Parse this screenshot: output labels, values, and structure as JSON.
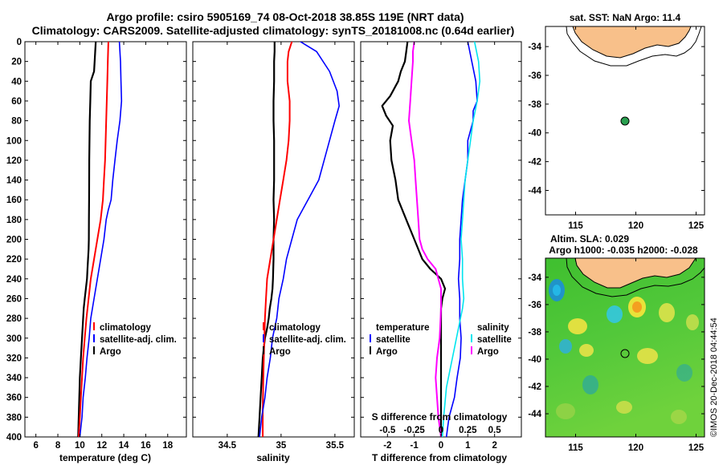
{
  "title": {
    "line1": "Argo profile: csiro 5905169_74 08-Oct-2018 38.85S 119E (NRT data)",
    "line2": "Climatology: CARS2009. Satellite-adjusted climatology: synTS_20181008.nc (0.64d earlier)"
  },
  "watermark": "©IMOS 20-Dec-2018 04:44:54",
  "colors": {
    "argo": "#000000",
    "climatology": "#ff0000",
    "satellite": "#0000ff",
    "s_satellite": "#00e5ee",
    "s_climatology": "#ff00ff",
    "land": "#f8c08a",
    "argo_marker": "#2aa050"
  },
  "chart_data": [
    {
      "id": "temperature",
      "type": "line",
      "xlabel": "temperature (deg C)",
      "xlim": [
        5,
        19.7
      ],
      "xticks": [
        6,
        8,
        10,
        12,
        14,
        16,
        18
      ],
      "ylim": [
        400,
        0
      ],
      "yticks": [
        0,
        20,
        40,
        60,
        80,
        100,
        120,
        140,
        160,
        180,
        200,
        220,
        240,
        260,
        280,
        300,
        320,
        340,
        360,
        380,
        400
      ],
      "legend": [
        "climatology",
        "satellite-adj. clim.",
        "Argo"
      ],
      "series": [
        {
          "name": "Argo",
          "color": "#000000",
          "width": 2.2,
          "x": [
            11.45,
            11.4,
            11.35,
            11.3,
            11.0,
            10.95,
            10.9,
            10.88,
            10.86,
            10.85,
            10.84,
            10.83,
            10.82,
            10.8,
            10.75,
            10.7,
            10.65,
            10.55,
            10.45,
            10.35,
            10.3,
            10.2,
            10.1,
            10.0,
            9.95,
            9.9,
            9.85
          ],
          "y": [
            0,
            10,
            20,
            30,
            40,
            60,
            80,
            100,
            120,
            140,
            160,
            180,
            200,
            210,
            220,
            230,
            240,
            250,
            260,
            270,
            280,
            300,
            320,
            340,
            360,
            380,
            400
          ]
        },
        {
          "name": "climatology",
          "color": "#ff0000",
          "width": 2,
          "x": [
            12.6,
            12.55,
            12.5,
            12.45,
            12.4,
            12.35,
            12.3,
            12.2,
            12.1,
            12.0,
            11.9,
            11.6,
            11.3,
            11.0,
            10.8,
            10.6,
            10.45,
            10.3,
            10.2,
            10.1,
            10.0,
            9.9
          ],
          "y": [
            0,
            20,
            40,
            60,
            80,
            100,
            120,
            140,
            160,
            170,
            180,
            200,
            220,
            240,
            260,
            280,
            300,
            320,
            340,
            360,
            380,
            400
          ]
        },
        {
          "name": "satellite-adj. clim.",
          "color": "#0000ff",
          "width": 1.6,
          "x": [
            13.6,
            13.7,
            13.75,
            13.8,
            13.65,
            13.4,
            13.2,
            13.0,
            12.85,
            12.6,
            12.4,
            12.2,
            11.9,
            11.6,
            11.3,
            11.0,
            10.85,
            10.65,
            10.5,
            10.3,
            10.2,
            10.1,
            10.0
          ],
          "y": [
            0,
            20,
            40,
            60,
            80,
            100,
            120,
            140,
            160,
            170,
            180,
            200,
            220,
            240,
            260,
            280,
            300,
            320,
            340,
            360,
            380,
            390,
            400
          ]
        }
      ]
    },
    {
      "id": "salinity",
      "type": "line",
      "xlabel": "salinity",
      "xlim": [
        34.18,
        35.68
      ],
      "xticks": [
        34.5,
        35,
        35.5
      ],
      "ylim": [
        400,
        0
      ],
      "legend": [
        "climatology",
        "satellite-adj. clim.",
        "Argo"
      ],
      "series": [
        {
          "name": "Argo",
          "color": "#000000",
          "width": 2.2,
          "x": [
            34.94,
            34.94,
            34.935,
            34.935,
            34.93,
            34.93,
            34.935,
            34.935,
            34.935,
            34.93,
            34.935,
            34.93,
            34.93,
            34.925,
            34.92,
            34.91,
            34.895,
            34.885,
            34.87,
            34.85,
            34.84,
            34.83,
            34.82,
            34.81,
            34.8,
            34.795,
            34.79
          ],
          "y": [
            0,
            10,
            20,
            40,
            60,
            80,
            100,
            120,
            140,
            160,
            180,
            200,
            220,
            240,
            250,
            260,
            270,
            280,
            290,
            300,
            310,
            320,
            340,
            360,
            380,
            390,
            400
          ]
        },
        {
          "name": "climatology",
          "color": "#ff0000",
          "width": 2,
          "x": [
            35.1,
            35.07,
            35.06,
            35.06,
            35.08,
            35.08,
            35.07,
            35.05,
            35.02,
            34.99,
            34.96,
            34.93,
            34.9,
            34.87,
            34.86,
            34.85,
            34.845,
            34.84,
            34.835,
            34.83,
            34.83
          ],
          "y": [
            0,
            10,
            20,
            40,
            60,
            80,
            100,
            120,
            140,
            160,
            180,
            200,
            220,
            240,
            260,
            280,
            300,
            320,
            340,
            370,
            400
          ]
        },
        {
          "name": "satellite-adj. clim.",
          "color": "#0000ff",
          "width": 1.6,
          "x": [
            35.18,
            35.33,
            35.45,
            35.52,
            35.54,
            35.5,
            35.45,
            35.4,
            35.35,
            35.3,
            35.25,
            35.2,
            35.15,
            35.1,
            35.05,
            35.02,
            34.98,
            34.96,
            34.94,
            34.92,
            34.9,
            34.87,
            34.85,
            34.82,
            34.8
          ],
          "y": [
            0,
            10,
            30,
            50,
            65,
            80,
            100,
            120,
            140,
            150,
            160,
            170,
            180,
            200,
            220,
            240,
            260,
            280,
            290,
            300,
            320,
            340,
            360,
            380,
            400
          ]
        }
      ]
    },
    {
      "id": "difference",
      "type": "line",
      "xlabel": "T difference from climatology",
      "xlabel_top": "S difference from climatology",
      "xlim": [
        -3,
        3
      ],
      "xticks": [
        -2,
        -1,
        0,
        1,
        2
      ],
      "xticks_s": [
        -0.5,
        -0.25,
        0,
        0.25,
        0.5
      ],
      "xtick_labels_s": [
        "-0.5",
        "-0.25",
        "0",
        "0.25",
        "0.5"
      ],
      "ylim": [
        400,
        0
      ],
      "legend_t": [
        "temperature",
        "satellite",
        "Argo"
      ],
      "legend_s": [
        "salinity",
        "satellite",
        "Argo"
      ],
      "series": [
        {
          "name": "T Argo",
          "color": "#000000",
          "width": 2.2,
          "x": [
            -1.25,
            -1.3,
            -1.35,
            -1.5,
            -1.6,
            -1.9,
            -2.2,
            -2.05,
            -1.8,
            -1.9,
            -1.85,
            -1.7,
            -1.6,
            -1.3,
            -1.0,
            -0.7,
            -0.4,
            0.0,
            0.15,
            0.05,
            0.0,
            0.0,
            0.0,
            0.0,
            0.0
          ],
          "y": [
            0,
            10,
            20,
            30,
            40,
            55,
            65,
            75,
            85,
            100,
            120,
            140,
            160,
            180,
            200,
            220,
            230,
            240,
            250,
            260,
            270,
            300,
            340,
            370,
            400
          ]
        },
        {
          "name": "S Argo",
          "color": "#ff00ff",
          "width": 2,
          "x": [
            -1.0,
            -1.05,
            -1.05,
            -1.1,
            -1.15,
            -1.2,
            -1.1,
            -1.0,
            -0.95,
            -0.9,
            -0.85,
            -0.8,
            -0.7,
            -0.5,
            -0.2,
            0.0,
            0.0,
            -0.05,
            -0.15,
            -0.2,
            -0.15,
            -0.1,
            0.0
          ],
          "y": [
            0,
            10,
            20,
            40,
            60,
            80,
            100,
            120,
            140,
            160,
            180,
            200,
            210,
            220,
            230,
            250,
            270,
            300,
            320,
            340,
            360,
            380,
            400
          ]
        },
        {
          "name": "T satellite",
          "color": "#0000ff",
          "width": 1.6,
          "x": [
            1.0,
            1.15,
            1.3,
            1.35,
            1.2,
            1.2,
            1.0,
            1.0,
            0.9,
            0.8,
            0.75,
            0.7,
            0.7,
            0.65,
            0.7,
            0.7,
            0.75,
            0.72,
            0.6,
            0.5,
            0.3,
            0.25,
            0.2
          ],
          "y": [
            0,
            20,
            40,
            60,
            70,
            80,
            100,
            120,
            140,
            160,
            180,
            200,
            220,
            240,
            260,
            280,
            300,
            320,
            340,
            360,
            380,
            390,
            400
          ]
        },
        {
          "name": "S satellite",
          "color": "#00e5ee",
          "width": 1.6,
          "x": [
            1.25,
            1.4,
            1.45,
            1.35,
            1.2,
            1.1,
            1.0,
            0.9,
            0.85,
            0.8,
            0.75,
            0.8,
            0.8,
            0.85,
            0.8,
            0.65,
            0.5,
            0.35,
            0.2,
            0.1,
            0.05
          ],
          "y": [
            0,
            20,
            40,
            60,
            80,
            100,
            120,
            140,
            160,
            180,
            200,
            220,
            240,
            260,
            270,
            290,
            310,
            330,
            350,
            380,
            400
          ]
        }
      ]
    }
  ],
  "map_top": {
    "title": "sat. SST: NaN Argo: 11.4",
    "xticks": [
      115,
      120,
      125
    ],
    "yticks": [
      -34,
      -36,
      -38,
      -40,
      -42,
      -44
    ],
    "xlim": [
      112.5,
      125.7
    ],
    "ylim": [
      -32.6,
      -45.7
    ],
    "argo_point": {
      "lon": 119.0,
      "lat": -38.85
    }
  },
  "map_bottom": {
    "title": "Altim. SLA: 0.029",
    "subtitle": "Argo h1000: -0.035 h2000: -0.028",
    "xticks": [
      115,
      120,
      125
    ],
    "yticks": [
      -34,
      -36,
      -38,
      -40,
      -42,
      -44
    ],
    "xlim": [
      112.5,
      125.7
    ],
    "ylim": [
      -32.6,
      -45.7
    ],
    "argo_point": {
      "lon": 119.0,
      "lat": -38.85
    }
  }
}
